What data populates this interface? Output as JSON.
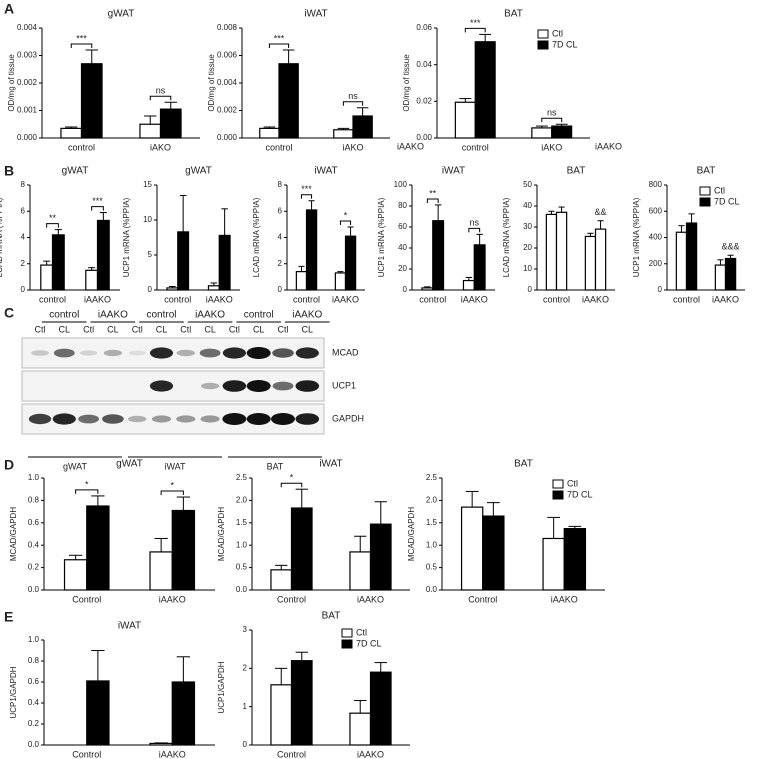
{
  "panels": [
    "A",
    "B",
    "C",
    "D",
    "E"
  ],
  "stray_labels": [
    "iAAKO",
    "iAAKO"
  ],
  "blot": {
    "groups": [
      "control",
      "iAAKO",
      "control",
      "iAAKO",
      "control",
      "iAAKO"
    ],
    "lanes": [
      "Ctl",
      "CL",
      "Ctl",
      "CL",
      "Ctl",
      "CL",
      "Ctl",
      "CL",
      "Ctl",
      "CL",
      "Ctl",
      "CL"
    ],
    "proteins": [
      "MCAD",
      "UCP1",
      "GAPDH"
    ],
    "tissues": [
      "gWAT",
      "iWAT",
      "BAT"
    ]
  },
  "chart_data": [
    {
      "type": "bar",
      "title": "gWAT",
      "ylabel": "OD/mg of tissue",
      "categories": [
        "control",
        "iAKO"
      ],
      "series": [
        {
          "color": "#ffffff",
          "values": [
            0.00035,
            0.0005
          ],
          "errors": [
            5e-05,
            0.0003
          ]
        },
        {
          "color": "#000000",
          "values": [
            0.0027,
            0.00105
          ],
          "errors": [
            0.0005,
            0.00025
          ]
        }
      ],
      "ylim": [
        0,
        0.004
      ],
      "yticks": [
        {
          "value": 0,
          "label": "0.000"
        },
        {
          "value": 0.001,
          "label": "0.001"
        },
        {
          "value": 0.002,
          "label": "0.002"
        },
        {
          "value": 0.003,
          "label": "0.003"
        },
        {
          "value": 0.004,
          "label": "0.004"
        }
      ],
      "annotations": [
        {
          "text": "***",
          "group": 0,
          "bracket": true
        },
        {
          "text": "ns",
          "group": 1,
          "bracket": true
        }
      ],
      "legend": false
    },
    {
      "type": "bar",
      "title": "iWAT",
      "ylabel": "OD/mg of tissue",
      "categories": [
        "control",
        "iAKO"
      ],
      "series": [
        {
          "color": "#ffffff",
          "values": [
            0.0007,
            0.0006
          ],
          "errors": [
            0.0001,
            0.0001
          ]
        },
        {
          "color": "#000000",
          "values": [
            0.0054,
            0.0016
          ],
          "errors": [
            0.001,
            0.0006
          ]
        }
      ],
      "ylim": [
        0,
        0.008
      ],
      "yticks": [
        {
          "value": 0,
          "label": "0.000"
        },
        {
          "value": 0.002,
          "label": "0.002"
        },
        {
          "value": 0.004,
          "label": "0.004"
        },
        {
          "value": 0.006,
          "label": "0.006"
        },
        {
          "value": 0.008,
          "label": "0.008"
        }
      ],
      "annotations": [
        {
          "text": "***",
          "group": 0,
          "bracket": true
        },
        {
          "text": "ns",
          "group": 1,
          "bracket": true
        }
      ],
      "legend": false
    },
    {
      "type": "bar",
      "title": "BAT",
      "ylabel": "OD/mg of tissue",
      "categories": [
        "control",
        "iAKO"
      ],
      "series": [
        {
          "name": "Ctl",
          "color": "#ffffff",
          "values": [
            0.0195,
            0.0055
          ],
          "errors": [
            0.002,
            0.001
          ]
        },
        {
          "name": "7D CL",
          "color": "#000000",
          "values": [
            0.0525,
            0.0065
          ],
          "errors": [
            0.004,
            0.001
          ]
        }
      ],
      "ylim": [
        0,
        0.06
      ],
      "yticks": [
        {
          "value": 0,
          "label": "0.00"
        },
        {
          "value": 0.02,
          "label": "0.02"
        },
        {
          "value": 0.04,
          "label": "0.04"
        },
        {
          "value": 0.06,
          "label": "0.06"
        }
      ],
      "annotations": [
        {
          "text": "***",
          "group": 0,
          "bracket": true
        },
        {
          "text": "ns",
          "group": 1,
          "bracket": true
        }
      ],
      "legend": true
    },
    {
      "type": "bar",
      "title": "gWAT",
      "ylabel": "LCAD mRNA (%PPIA)",
      "categories": [
        "control",
        "iAAKO"
      ],
      "series": [
        {
          "color": "#ffffff",
          "values": [
            1.9,
            1.5
          ],
          "errors": [
            0.3,
            0.2
          ]
        },
        {
          "color": "#000000",
          "values": [
            4.2,
            5.3
          ],
          "errors": [
            0.4,
            0.6
          ]
        }
      ],
      "ylim": [
        0,
        8
      ],
      "yticks": [
        0,
        2,
        4,
        6,
        8
      ],
      "annotations": [
        {
          "text": "**",
          "group": 0,
          "bracket": true
        },
        {
          "text": "***",
          "group": 1,
          "bracket": true
        }
      ],
      "legend": false
    },
    {
      "type": "bar",
      "title": "gWAT",
      "ylabel": "UCP1 mRNA (%PPIA)",
      "categories": [
        "control",
        "iAAKO"
      ],
      "series": [
        {
          "color": "#ffffff",
          "values": [
            0.3,
            0.6
          ],
          "errors": [
            0.2,
            0.4
          ]
        },
        {
          "color": "#000000",
          "values": [
            8.3,
            7.8
          ],
          "errors": [
            5.2,
            3.8
          ]
        }
      ],
      "ylim": [
        0,
        15
      ],
      "yticks": [
        0,
        5,
        10,
        15
      ],
      "annotations": [],
      "legend": false
    },
    {
      "type": "bar",
      "title": "iWAT",
      "ylabel": "LCAD mRNA (%PPIA)",
      "categories": [
        "control",
        "iAAKO"
      ],
      "series": [
        {
          "color": "#ffffff",
          "values": [
            1.4,
            1.3
          ],
          "errors": [
            0.4,
            0.1
          ]
        },
        {
          "color": "#000000",
          "values": [
            6.1,
            4.1
          ],
          "errors": [
            0.7,
            0.7
          ]
        }
      ],
      "ylim": [
        0,
        8
      ],
      "yticks": [
        0,
        2,
        4,
        6,
        8
      ],
      "annotations": [
        {
          "text": "***",
          "group": 0,
          "bracket": true
        },
        {
          "text": "*",
          "group": 1,
          "bracket": true
        }
      ],
      "legend": false
    },
    {
      "type": "bar",
      "title": "iWAT",
      "ylabel": "UCP1 mRNA (%PPIA)",
      "categories": [
        "control",
        "iAAKO"
      ],
      "series": [
        {
          "color": "#ffffff",
          "values": [
            2,
            9
          ],
          "errors": [
            1,
            3
          ]
        },
        {
          "color": "#000000",
          "values": [
            66,
            43
          ],
          "errors": [
            15,
            10
          ]
        }
      ],
      "ylim": [
        0,
        100
      ],
      "yticks": [
        0,
        20,
        40,
        60,
        80,
        100
      ],
      "annotations": [
        {
          "text": "**",
          "group": 0,
          "bracket": true
        },
        {
          "text": "ns",
          "group": 1,
          "bracket": true
        }
      ],
      "legend": false
    },
    {
      "type": "bar",
      "title": "BAT",
      "ylabel": "LCAD mRNA (%PPIA)",
      "categories": [
        "control",
        "iAAKO"
      ],
      "series": [
        {
          "color": "#ffffff",
          "values": [
            36,
            25.5
          ],
          "errors": [
            1.5,
            1.5
          ]
        },
        {
          "color": "#ffffff",
          "values": [
            37,
            29
          ],
          "errors": [
            2.5,
            4
          ]
        }
      ],
      "ylim": [
        0,
        50
      ],
      "yticks": [
        0,
        10,
        20,
        30,
        40,
        50
      ],
      "annotations": [
        {
          "text": "&&",
          "group": 1,
          "bracket": false
        }
      ],
      "legend": false
    },
    {
      "type": "bar",
      "title": "BAT",
      "ylabel": "UCP1 mRNA (%PPIA)",
      "categories": [
        "control",
        "iAAKO"
      ],
      "series": [
        {
          "name": "Ctl",
          "color": "#ffffff",
          "values": [
            440,
            190
          ],
          "errors": [
            50,
            40
          ]
        },
        {
          "name": "7D CL",
          "color": "#000000",
          "values": [
            510,
            240
          ],
          "errors": [
            70,
            25
          ]
        }
      ],
      "ylim": [
        0,
        800
      ],
      "yticks": [
        0,
        200,
        400,
        600,
        800
      ],
      "annotations": [
        {
          "text": "&&&",
          "group": 1,
          "bracket": false
        }
      ],
      "legend": true
    },
    {
      "type": "bar",
      "title": "gWAT",
      "ylabel": "MCAD/GAPDH",
      "categories": [
        "Control",
        "iAAKO"
      ],
      "series": [
        {
          "color": "#ffffff",
          "values": [
            0.27,
            0.34
          ],
          "errors": [
            0.04,
            0.12
          ]
        },
        {
          "color": "#000000",
          "values": [
            0.75,
            0.71
          ],
          "errors": [
            0.09,
            0.12
          ]
        }
      ],
      "ylim": [
        0,
        1
      ],
      "yticks": [
        {
          "value": 0,
          "label": "0.0"
        },
        0.2,
        0.4,
        0.6,
        0.8,
        {
          "value": 1,
          "label": "1.0"
        }
      ],
      "annotations": [
        {
          "text": "*",
          "group": 0,
          "bracket": true
        },
        {
          "text": "*",
          "group": 1,
          "bracket": true
        }
      ],
      "legend": false
    },
    {
      "type": "bar",
      "title": "iWAT",
      "ylabel": "MCAD/GAPDH",
      "categories": [
        "Control",
        "iAAKO"
      ],
      "series": [
        {
          "color": "#ffffff",
          "values": [
            0.45,
            0.85
          ],
          "errors": [
            0.1,
            0.35
          ]
        },
        {
          "color": "#000000",
          "values": [
            1.83,
            1.47
          ],
          "errors": [
            0.42,
            0.5
          ]
        }
      ],
      "ylim": [
        0,
        2.5
      ],
      "yticks": [
        {
          "value": 0,
          "label": "0.0"
        },
        0.5,
        {
          "value": 1,
          "label": "1.0"
        },
        1.5,
        {
          "value": 2,
          "label": "2.0"
        },
        2.5
      ],
      "annotations": [
        {
          "text": "*",
          "group": 0,
          "bracket": true
        }
      ],
      "legend": false
    },
    {
      "type": "bar",
      "title": "BAT",
      "ylabel": "MCAD/GAPDH",
      "categories": [
        "Control",
        "iAAKO"
      ],
      "series": [
        {
          "name": "Ctl",
          "color": "#ffffff",
          "values": [
            1.85,
            1.15
          ],
          "errors": [
            0.35,
            0.47
          ]
        },
        {
          "name": "7D CL",
          "color": "#000000",
          "values": [
            1.65,
            1.37
          ],
          "errors": [
            0.3,
            0.05
          ]
        }
      ],
      "ylim": [
        0,
        2.5
      ],
      "yticks": [
        {
          "value": 0,
          "label": "0.0"
        },
        0.5,
        {
          "value": 1,
          "label": "1.0"
        },
        1.5,
        {
          "value": 2,
          "label": "2.0"
        },
        2.5
      ],
      "annotations": [],
      "legend": true
    },
    {
      "type": "bar",
      "title": "iWAT",
      "ylabel": "UCP1/GAPDH",
      "categories": [
        "Control",
        "iAAKO"
      ],
      "series": [
        {
          "color": "#ffffff",
          "values": [
            0,
            0.015
          ],
          "errors": [
            0,
            0.005
          ]
        },
        {
          "color": "#000000",
          "values": [
            0.61,
            0.6
          ],
          "errors": [
            0.29,
            0.24
          ]
        }
      ],
      "ylim": [
        0,
        1
      ],
      "yticks": [
        {
          "value": 0,
          "label": "0.0"
        },
        0.2,
        0.4,
        0.6,
        0.8,
        {
          "value": 1,
          "label": "1.0"
        }
      ],
      "annotations": [],
      "legend": false
    },
    {
      "type": "bar",
      "title": "BAT",
      "ylabel": "UCP1/GAPDH",
      "categories": [
        "Control",
        "iAAKO"
      ],
      "series": [
        {
          "name": "Ctl",
          "color": "#ffffff",
          "values": [
            1.57,
            0.83
          ],
          "errors": [
            0.43,
            0.33
          ]
        },
        {
          "name": "7D CL",
          "color": "#000000",
          "values": [
            2.2,
            1.9
          ],
          "errors": [
            0.22,
            0.25
          ]
        }
      ],
      "ylim": [
        0,
        3
      ],
      "yticks": [
        0,
        1,
        2,
        3
      ],
      "annotations": [],
      "legend": true
    }
  ]
}
